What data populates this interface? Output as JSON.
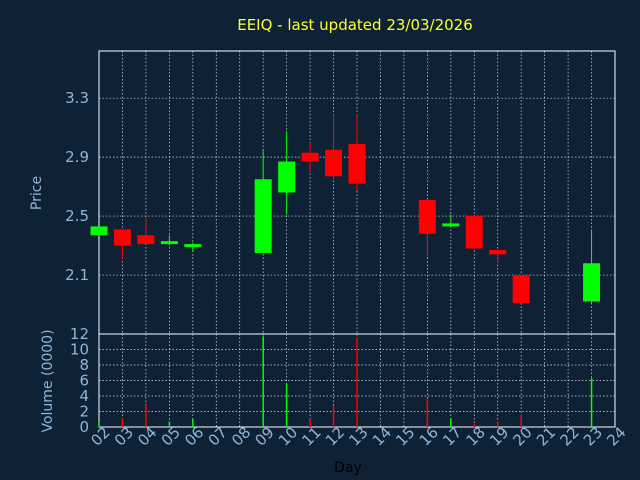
{
  "chart_data": [
    {
      "type": "candlestick",
      "title": "EEIQ - last updated 23/03/2026",
      "ylabel": "Price",
      "ylim": [
        1.7,
        3.62
      ],
      "yticks": [
        2.1,
        2.5,
        2.9,
        3.3
      ],
      "grid": true,
      "colors": {
        "up": "#00ff00",
        "down": "#ff0000"
      },
      "x_ticks": [
        "02",
        "03",
        "04",
        "05",
        "06",
        "07",
        "08",
        "09",
        "10",
        "11",
        "12",
        "13",
        "14",
        "15",
        "16",
        "17",
        "18",
        "19",
        "20",
        "21",
        "22",
        "23",
        "24"
      ],
      "candles": [
        {
          "day": "02",
          "open": 2.37,
          "close": 2.43,
          "high": 2.43,
          "low": 2.37
        },
        {
          "day": "03",
          "open": 2.41,
          "close": 2.3,
          "high": 2.41,
          "low": 2.21
        },
        {
          "day": "04",
          "open": 2.37,
          "close": 2.31,
          "high": 2.49,
          "low": 2.31
        },
        {
          "day": "05",
          "open": 2.31,
          "close": 2.33,
          "high": 2.37,
          "low": 2.3
        },
        {
          "day": "06",
          "open": 2.29,
          "close": 2.31,
          "high": 2.32,
          "low": 2.26
        },
        {
          "day": "09",
          "open": 2.25,
          "close": 2.75,
          "high": 2.95,
          "low": 2.25
        },
        {
          "day": "10",
          "open": 2.66,
          "close": 2.87,
          "high": 3.07,
          "low": 2.51
        },
        {
          "day": "11",
          "open": 2.93,
          "close": 2.87,
          "high": 3.0,
          "low": 2.8
        },
        {
          "day": "12",
          "open": 2.95,
          "close": 2.77,
          "high": 3.19,
          "low": 2.76
        },
        {
          "day": "13",
          "open": 2.99,
          "close": 2.72,
          "high": 3.19,
          "low": 2.67
        },
        {
          "day": "16",
          "open": 2.61,
          "close": 2.38,
          "high": 2.61,
          "low": 2.22
        },
        {
          "day": "17",
          "open": 2.43,
          "close": 2.45,
          "high": 2.51,
          "low": 2.43
        },
        {
          "day": "18",
          "open": 2.5,
          "close": 2.28,
          "high": 2.5,
          "low": 2.28
        },
        {
          "day": "19",
          "open": 2.27,
          "close": 2.24,
          "high": 2.27,
          "low": 2.18
        },
        {
          "day": "20",
          "open": 2.1,
          "close": 1.91,
          "high": 2.1,
          "low": 1.91
        },
        {
          "day": "23",
          "open": 1.92,
          "close": 2.18,
          "high": 2.41,
          "low": 1.9
        }
      ]
    },
    {
      "type": "bar",
      "ylabel": "Volume (0000)",
      "xlabel": "Day",
      "ylim": [
        0,
        12
      ],
      "yticks": [
        0,
        2,
        4,
        6,
        8,
        10,
        12
      ],
      "grid": true,
      "categories": [
        "02",
        "03",
        "04",
        "05",
        "06",
        "09",
        "10",
        "11",
        "12",
        "13",
        "16",
        "17",
        "18",
        "19",
        "20",
        "23"
      ],
      "values": [
        0.6,
        1.2,
        2.9,
        0.7,
        1.0,
        11.7,
        5.5,
        0.9,
        2.8,
        11.5,
        3.7,
        1.1,
        0.4,
        0.7,
        1.6,
        6.3
      ],
      "directions": [
        "up",
        "down",
        "down",
        "up",
        "up",
        "up",
        "up",
        "down",
        "down",
        "down",
        "down",
        "up",
        "down",
        "down",
        "down",
        "up"
      ]
    }
  ]
}
